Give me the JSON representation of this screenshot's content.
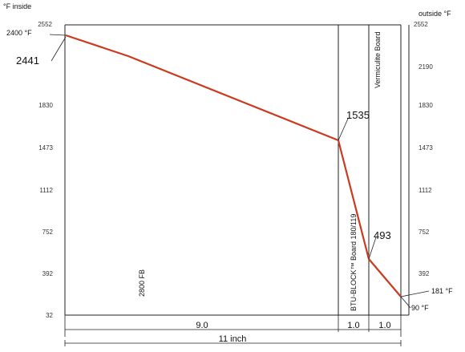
{
  "axes": {
    "left_title": "°F inside",
    "right_title": "outside °F",
    "ticks": [
      "2552",
      "2190",
      "1830",
      "1473",
      "1112",
      "752",
      "392",
      "32"
    ]
  },
  "callouts": {
    "inside_temp": "2400 °F",
    "hot_face": "2441",
    "interface_1": "1535",
    "interface_2": "493",
    "cold_face": "181 °F",
    "outside_temp": "90 °F"
  },
  "layers": {
    "brick": "2800 FB",
    "board": "BTU-BLOCK™ Board 180/119",
    "vermiculite": "Vermiculite Board"
  },
  "dimensions": {
    "brick_width": "9.0",
    "board_width": "1.0",
    "vermiculite_width": "1.0",
    "total_width": "11 inch"
  },
  "colors": {
    "profile_line": "#cc3a1e",
    "lines": "#222222",
    "grid": "#bbbbbb"
  },
  "chart_data": {
    "type": "line",
    "title": "",
    "xlabel": "",
    "ylabel": "°F inside",
    "y2label": "outside °F",
    "ylim": [
      32,
      2552
    ],
    "yticks": [
      2552,
      2190,
      1830,
      1473,
      1112,
      752,
      392,
      32
    ],
    "x": [
      0,
      9.0,
      10.0,
      11.0
    ],
    "series": [
      {
        "values": [
          2441,
          1535,
          493,
          181
        ]
      }
    ],
    "layer_boundaries_inch": [
      0,
      9.0,
      10.0,
      11.0
    ],
    "grid": false
  }
}
